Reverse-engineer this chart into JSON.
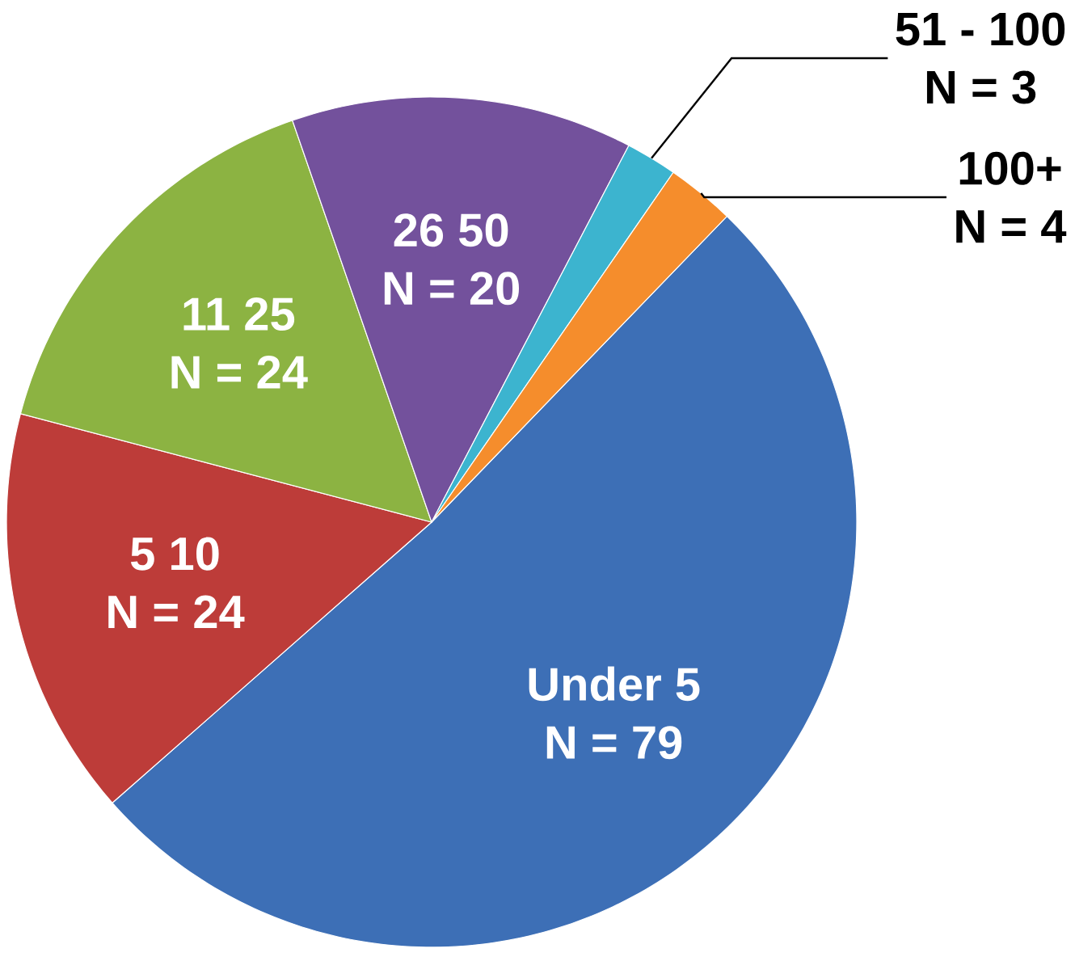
{
  "chart_data": {
    "type": "pie",
    "categories": [
      "Under 5",
      "5   10",
      "11   25",
      "26   50",
      "51 - 100",
      "100+"
    ],
    "values": [
      79,
      24,
      24,
      20,
      3,
      4
    ],
    "value_labels": [
      "N = 79",
      "N = 24",
      "N = 24",
      "N = 20",
      "N = 3",
      "N = 4"
    ],
    "colors": [
      "#3d6fb6",
      "#bd3c39",
      "#8cb342",
      "#73519c",
      "#3cb4cf",
      "#f58d2c"
    ]
  }
}
